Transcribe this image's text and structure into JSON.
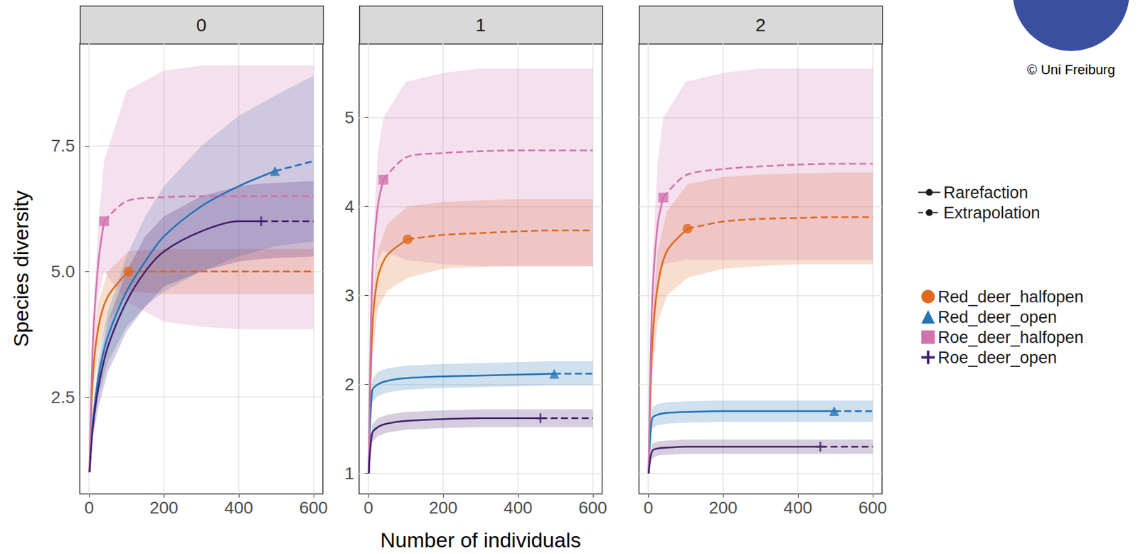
{
  "chart_data": {
    "type": "line",
    "x_label": "Number of individuals",
    "y_label": "Species diversity",
    "credit": "© Uni Freiburg",
    "grid": true,
    "legend": "right",
    "xlim": [
      -25,
      625
    ],
    "xticks": [
      0,
      200,
      400,
      600
    ],
    "segments": [
      {
        "name": "Rarefaction",
        "line_style": "solid"
      },
      {
        "name": "Extrapolation",
        "line_style": "dashed"
      }
    ],
    "series_info": [
      {
        "name": "Red_deer_halfopen",
        "color": "#E0691F",
        "marker": "circle",
        "observed_x": 105
      },
      {
        "name": "Red_deer_open",
        "color": "#2474B5",
        "marker": "triangle",
        "observed_x": 497
      },
      {
        "name": "Roe_deer_halfopen",
        "color": "#D173AE",
        "marker": "square",
        "observed_x": 40
      },
      {
        "name": "Roe_deer_open",
        "color": "#43216E",
        "marker": "cross",
        "observed_x": 460
      }
    ],
    "panels": [
      {
        "title": "0",
        "ylim": [
          0.57,
          9.54
        ],
        "yticks": [
          2.5,
          {
            "value": 5,
            "label": "5.0"
          },
          7.5
        ],
        "series": [
          {
            "name": "Red_deer_halfopen",
            "x": [
              1,
              10,
              25,
              50,
              105,
              200,
              300,
              400,
              500,
              600
            ],
            "values": [
              1,
              2.9,
              3.9,
              4.5,
              5.0,
              5.0,
              5.0,
              5.0,
              5.0,
              5.0
            ],
            "lower": [
              1,
              2.5,
              3.4,
              4.0,
              4.6,
              4.55,
              4.55,
              4.55,
              4.55,
              4.55
            ],
            "upper": [
              1,
              3.3,
              4.4,
              5.0,
              5.4,
              5.45,
              5.45,
              5.45,
              5.45,
              5.45
            ]
          },
          {
            "name": "Red_deer_open",
            "x": [
              1,
              10,
              25,
              50,
              100,
              150,
              200,
              300,
              400,
              497,
              600
            ],
            "values": [
              1,
              2.0,
              2.9,
              3.7,
              4.6,
              5.2,
              5.7,
              6.3,
              6.7,
              7.0,
              7.2
            ],
            "lower": [
              1,
              1.8,
              2.5,
              3.2,
              3.9,
              4.3,
              4.6,
              5.0,
              5.3,
              5.5,
              5.6
            ],
            "upper": [
              1,
              2.2,
              3.3,
              4.2,
              5.3,
              6.1,
              6.7,
              7.5,
              8.1,
              8.5,
              8.9
            ]
          },
          {
            "name": "Roe_deer_halfopen",
            "x": [
              1,
              10,
              25,
              40,
              100,
              200,
              300,
              400,
              500,
              600
            ],
            "values": [
              1,
              3.6,
              5.2,
              6.0,
              6.4,
              6.48,
              6.5,
              6.5,
              6.5,
              6.5
            ],
            "lower": [
              1,
              3.2,
              4.5,
              5.0,
              4.4,
              4.0,
              3.9,
              3.85,
              3.85,
              3.85
            ],
            "upper": [
              1,
              4.0,
              6.0,
              7.2,
              8.6,
              9.0,
              9.1,
              9.1,
              9.1,
              9.1
            ]
          },
          {
            "name": "Roe_deer_open",
            "x": [
              1,
              10,
              25,
              50,
              100,
              150,
              200,
              300,
              400,
              460,
              600
            ],
            "values": [
              1,
              1.9,
              2.7,
              3.5,
              4.4,
              5.0,
              5.4,
              5.8,
              6.0,
              6.0,
              6.0
            ],
            "lower": [
              1,
              1.7,
              2.3,
              3.0,
              3.8,
              4.3,
              4.7,
              5.0,
              5.2,
              5.25,
              5.3
            ],
            "upper": [
              1,
              2.1,
              3.1,
              4.0,
              5.0,
              5.7,
              6.1,
              6.5,
              6.7,
              6.75,
              6.8
            ]
          }
        ]
      },
      {
        "title": "1",
        "ylim": [
          0.77,
          5.83
        ],
        "yticks": [
          1,
          2,
          3,
          4,
          5
        ],
        "series": [
          {
            "name": "Red_deer_halfopen",
            "x": [
              1,
              10,
              25,
              50,
              105,
              200,
              300,
              400,
              500,
              600
            ],
            "values": [
              1,
              2.6,
              3.2,
              3.45,
              3.63,
              3.68,
              3.7,
              3.72,
              3.73,
              3.73
            ],
            "lower": [
              1,
              2.3,
              2.85,
              3.05,
              3.2,
              3.3,
              3.32,
              3.33,
              3.33,
              3.33
            ],
            "upper": [
              1,
              2.9,
              3.5,
              3.8,
              4.0,
              4.05,
              4.07,
              4.08,
              4.08,
              4.08
            ]
          },
          {
            "name": "Red_deer_open",
            "x": [
              1,
              10,
              25,
              50,
              100,
              200,
              300,
              400,
              497,
              600
            ],
            "values": [
              1,
              1.93,
              2.0,
              2.04,
              2.07,
              2.09,
              2.1,
              2.11,
              2.12,
              2.12
            ],
            "lower": [
              1,
              1.8,
              1.87,
              1.91,
              1.94,
              1.96,
              1.97,
              1.98,
              1.99,
              1.99
            ],
            "upper": [
              1,
              2.06,
              2.14,
              2.18,
              2.21,
              2.23,
              2.24,
              2.25,
              2.26,
              2.26
            ]
          },
          {
            "name": "Roe_deer_halfopen",
            "x": [
              1,
              10,
              25,
              40,
              100,
              200,
              300,
              400,
              500,
              600
            ],
            "values": [
              1,
              3.2,
              4.0,
              4.3,
              4.55,
              4.6,
              4.62,
              4.63,
              4.63,
              4.63
            ],
            "lower": [
              1,
              2.9,
              3.4,
              3.5,
              3.4,
              3.35,
              3.33,
              3.33,
              3.33,
              3.33
            ],
            "upper": [
              1,
              3.5,
              4.6,
              5.0,
              5.4,
              5.5,
              5.55,
              5.55,
              5.55,
              5.55
            ]
          },
          {
            "name": "Roe_deer_open",
            "x": [
              1,
              10,
              25,
              50,
              100,
              200,
              300,
              400,
              460,
              600
            ],
            "values": [
              1,
              1.45,
              1.52,
              1.56,
              1.59,
              1.61,
              1.62,
              1.62,
              1.62,
              1.62
            ],
            "lower": [
              1,
              1.35,
              1.42,
              1.46,
              1.49,
              1.51,
              1.52,
              1.52,
              1.52,
              1.52
            ],
            "upper": [
              1,
              1.55,
              1.62,
              1.66,
              1.69,
              1.71,
              1.72,
              1.72,
              1.72,
              1.72
            ]
          }
        ]
      },
      {
        "title": "2",
        "ylim": [
          0.77,
          5.83
        ],
        "yticks": [
          1,
          2,
          3,
          4,
          5
        ],
        "tick_labels": "x",
        "series": [
          {
            "name": "Red_deer_halfopen",
            "x": [
              1,
              10,
              25,
              50,
              105,
              200,
              300,
              400,
              500,
              600
            ],
            "values": [
              1,
              2.4,
              3.1,
              3.5,
              3.75,
              3.83,
              3.86,
              3.87,
              3.88,
              3.88
            ],
            "lower": [
              1,
              2.1,
              2.7,
              3.0,
              3.2,
              3.3,
              3.33,
              3.35,
              3.35,
              3.35
            ],
            "upper": [
              1,
              2.7,
              3.5,
              3.95,
              4.25,
              4.33,
              4.36,
              4.37,
              4.38,
              4.38
            ]
          },
          {
            "name": "Red_deer_open",
            "x": [
              1,
              10,
              25,
              50,
              100,
              200,
              300,
              400,
              497,
              600
            ],
            "values": [
              1,
              1.62,
              1.66,
              1.68,
              1.69,
              1.7,
              1.7,
              1.7,
              1.7,
              1.7
            ],
            "lower": [
              1,
              1.5,
              1.54,
              1.56,
              1.57,
              1.58,
              1.58,
              1.58,
              1.58,
              1.58
            ],
            "upper": [
              1,
              1.74,
              1.78,
              1.8,
              1.81,
              1.82,
              1.82,
              1.82,
              1.82,
              1.82
            ]
          },
          {
            "name": "Roe_deer_halfopen",
            "x": [
              1,
              10,
              25,
              40,
              100,
              200,
              300,
              400,
              500,
              600
            ],
            "values": [
              1,
              2.9,
              3.8,
              4.1,
              4.35,
              4.42,
              4.45,
              4.47,
              4.48,
              4.48
            ],
            "lower": [
              1,
              2.6,
              3.2,
              3.35,
              3.4,
              3.4,
              3.4,
              3.4,
              3.4,
              3.4
            ],
            "upper": [
              1,
              3.3,
              4.5,
              5.0,
              5.4,
              5.5,
              5.55,
              5.55,
              5.55,
              5.55
            ]
          },
          {
            "name": "Roe_deer_open",
            "x": [
              1,
              10,
              25,
              50,
              100,
              200,
              300,
              400,
              460,
              600
            ],
            "values": [
              1,
              1.25,
              1.28,
              1.29,
              1.3,
              1.3,
              1.3,
              1.3,
              1.3,
              1.3
            ],
            "lower": [
              1,
              1.17,
              1.2,
              1.21,
              1.22,
              1.22,
              1.22,
              1.22,
              1.22,
              1.22
            ],
            "upper": [
              1,
              1.33,
              1.36,
              1.37,
              1.38,
              1.38,
              1.38,
              1.38,
              1.38,
              1.38
            ]
          }
        ]
      }
    ]
  }
}
